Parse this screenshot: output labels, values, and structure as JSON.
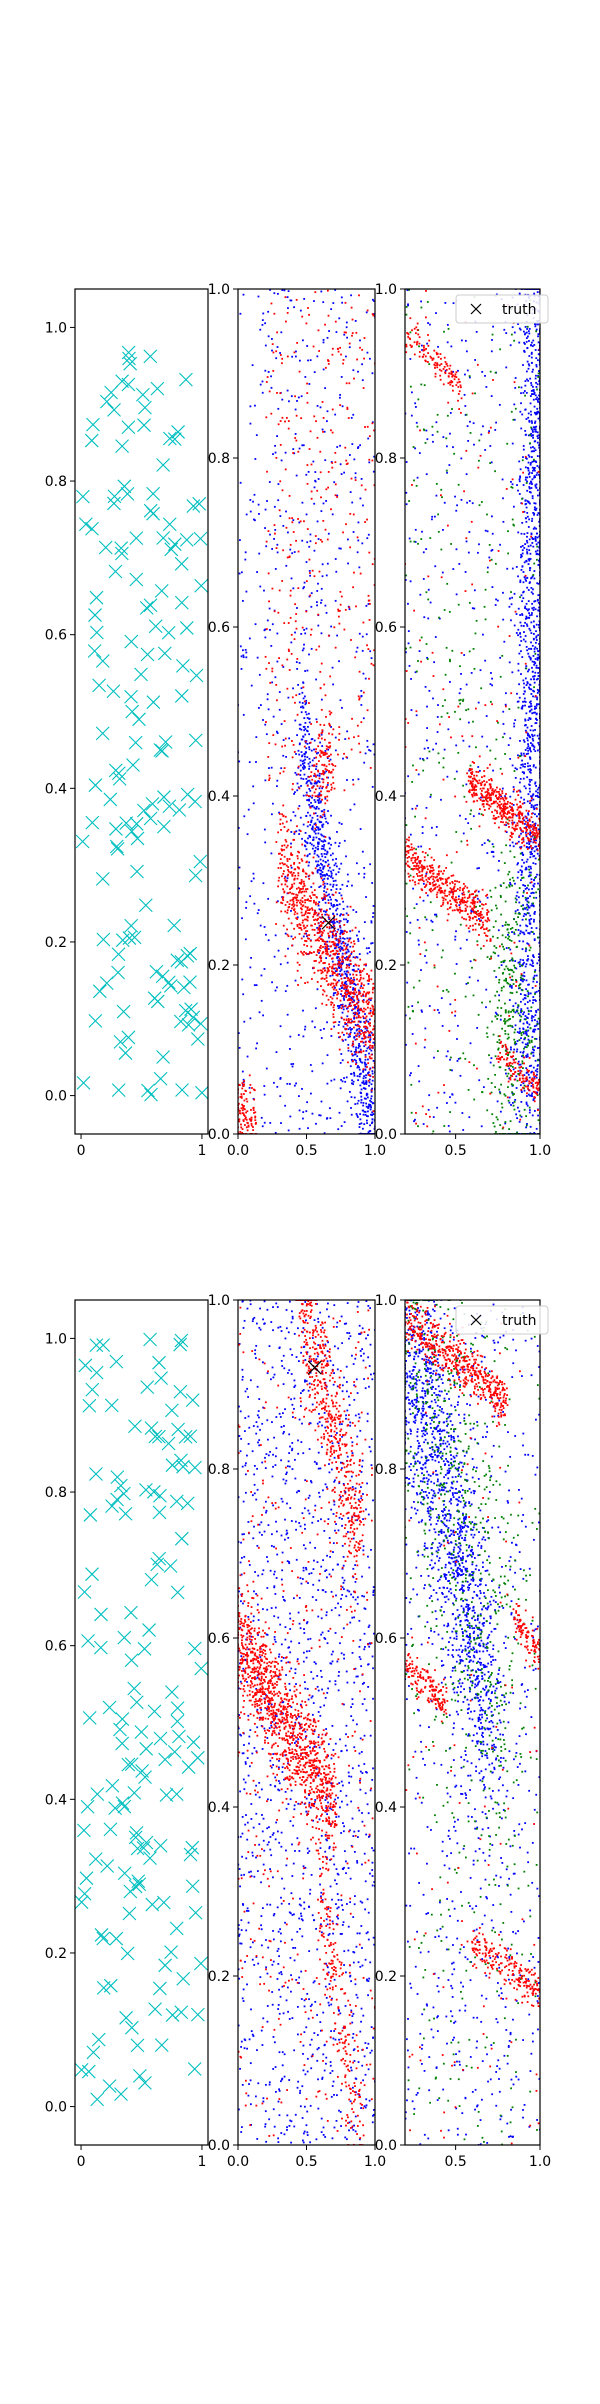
{
  "chart_data": [
    {
      "type": "scatter",
      "row": 1,
      "col": 1,
      "xlim": [
        -0.05,
        1.05
      ],
      "ylim": [
        -0.05,
        1.05
      ],
      "xticks": [
        0,
        1
      ],
      "xtick_labels": [
        "0",
        "1"
      ],
      "yticks": [
        0.0,
        0.2,
        0.4,
        0.6,
        0.8,
        1.0
      ],
      "ytick_labels": [
        "0.0",
        "0.2",
        "0.4",
        "0.6",
        "0.8",
        "1.0"
      ],
      "series": [
        {
          "marker": "x",
          "color": "#00bfbf",
          "count": 150,
          "distribution": "uniform over [0,1]x[0,1]"
        }
      ]
    },
    {
      "type": "scatter",
      "row": 1,
      "col": 2,
      "xlim": [
        0.0,
        1.0
      ],
      "ylim": [
        0.0,
        1.0
      ],
      "xticks": [
        0.0,
        0.5,
        1.0
      ],
      "xtick_labels": [
        "0.0",
        "0.5",
        "1.0"
      ],
      "yticks": [
        0.0,
        0.2,
        0.4,
        0.6,
        0.8,
        1.0
      ],
      "ytick_labels": [
        "0.0",
        "0.2",
        "0.4",
        "0.6",
        "0.8",
        "1.0"
      ],
      "series": [
        {
          "color": "#0000ff",
          "description": "dense band from (0.3,0.5) to (1.0,0.0) plus sparse background"
        },
        {
          "color": "#ff0000",
          "description": "dense diagonal band from (0.3,0.3) to (1.0,0.1), clusters at (0.05,0.02) and (0.6,0.45), sparse upper region"
        }
      ],
      "truth": {
        "marker": "x",
        "color": "#000000",
        "x": 0.66,
        "y": 0.25
      }
    },
    {
      "type": "scatter",
      "row": 1,
      "col": 3,
      "xlim": [
        0.2,
        1.0
      ],
      "ylim": [
        0.0,
        1.0
      ],
      "xticks": [
        0.5,
        1.0
      ],
      "xtick_labels": [
        "0.5",
        "1.0"
      ],
      "yticks": [
        0.0,
        0.2,
        0.4,
        0.6,
        0.8,
        1.0
      ],
      "ytick_labels": [
        "0.0",
        "0.2",
        "0.4",
        "0.6",
        "0.8",
        "1.0"
      ],
      "series": [
        {
          "color": "#0000ff",
          "description": "dense along right edge x~0.9-1.0"
        },
        {
          "color": "#008000",
          "description": "scattered, denser near (0.8,0.15)"
        },
        {
          "color": "#ff0000",
          "description": "diagonal bands at y~0.3, y~0.4, y~0.9, y~0.07"
        }
      ],
      "legend": {
        "location": "upper right",
        "entries": [
          {
            "marker": "x",
            "label": "truth"
          }
        ]
      }
    },
    {
      "type": "scatter",
      "row": 2,
      "col": 1,
      "xlim": [
        -0.05,
        1.05
      ],
      "ylim": [
        -0.05,
        1.05
      ],
      "xticks": [
        0,
        1
      ],
      "xtick_labels": [
        "0",
        "1"
      ],
      "yticks": [
        0.0,
        0.2,
        0.4,
        0.6,
        0.8,
        1.0
      ],
      "ytick_labels": [
        "0.0",
        "0.2",
        "0.4",
        "0.6",
        "0.8",
        "1.0"
      ],
      "series": [
        {
          "marker": "x",
          "color": "#00bfbf",
          "count": 150,
          "distribution": "uniform over [0,1]x[0,1]"
        }
      ]
    },
    {
      "type": "scatter",
      "row": 2,
      "col": 2,
      "xlim": [
        0.0,
        1.0
      ],
      "ylim": [
        0.0,
        1.0
      ],
      "xticks": [
        0.0,
        0.5,
        1.0
      ],
      "xtick_labels": [
        "0.0",
        "0.5",
        "1.0"
      ],
      "yticks": [
        0.0,
        0.2,
        0.4,
        0.6,
        0.8,
        1.0
      ],
      "ytick_labels": [
        "0.0",
        "0.2",
        "0.4",
        "0.6",
        "0.8",
        "1.0"
      ],
      "series": [
        {
          "color": "#0000ff",
          "description": "sparse uniform background"
        },
        {
          "color": "#ff0000",
          "description": "dense diagonal band from (0.0,0.6) to (0.7,0.4), band from (0.5,1.0) to (0.9,0.7)"
        }
      ],
      "truth": {
        "marker": "x",
        "color": "#000000",
        "x": 0.56,
        "y": 0.92
      }
    },
    {
      "type": "scatter",
      "row": 2,
      "col": 3,
      "xlim": [
        0.2,
        1.0
      ],
      "ylim": [
        0.0,
        1.0
      ],
      "xticks": [
        0.5,
        1.0
      ],
      "xtick_labels": [
        "0.5",
        "1.0"
      ],
      "yticks": [
        0.0,
        0.2,
        0.4,
        0.6,
        0.8,
        1.0
      ],
      "ytick_labels": [
        "0.0",
        "0.2",
        "0.4",
        "0.6",
        "0.8",
        "1.0"
      ],
      "series": [
        {
          "color": "#0000ff",
          "description": "dense band from (0.2,0.95) to (0.7,0.5), sparse elsewhere"
        },
        {
          "color": "#008000",
          "description": "scattered along the blue band"
        },
        {
          "color": "#ff0000",
          "description": "bands at y~0.93 (x 0.3-0.8), y~0.55 (x<0.4), y~0.6 (x>0.8), y~0.21 (x 0.6-1.0)"
        }
      ],
      "legend": {
        "location": "upper right",
        "entries": [
          {
            "marker": "x",
            "label": "truth"
          }
        ]
      }
    }
  ]
}
